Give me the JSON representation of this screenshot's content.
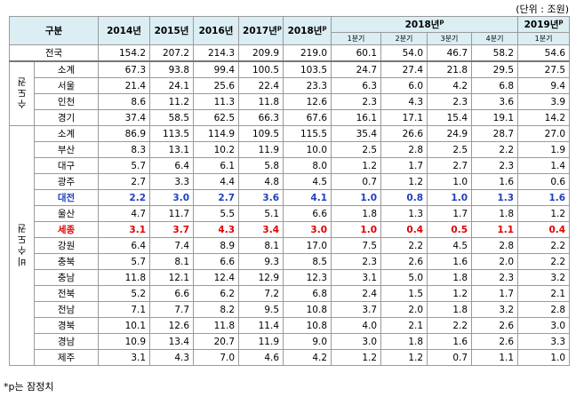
{
  "unit": "(단위 : 조원)",
  "header": {
    "label": "구분",
    "years": [
      {
        "label": "2014년"
      },
      {
        "label": "2015년"
      },
      {
        "label": "2016년"
      },
      {
        "label": "2017년",
        "sup": "p"
      },
      {
        "label": "2018년",
        "sup": "p"
      }
    ],
    "group": {
      "label": "2018년",
      "sup": "p",
      "quarters": [
        "1분기",
        "2분기",
        "3분기",
        "4분기"
      ]
    },
    "last": {
      "label": "2019년",
      "sup": "p",
      "quarter": "1분기"
    }
  },
  "total": {
    "name": "전국",
    "values": [
      "154.2",
      "207.2",
      "214.3",
      "209.9",
      "219.0",
      "60.1",
      "54.0",
      "46.7",
      "58.2",
      "54.6"
    ]
  },
  "groups": [
    {
      "label": "수도권",
      "rows": [
        {
          "name": "소계",
          "values": [
            "67.3",
            "93.8",
            "99.4",
            "100.5",
            "103.5",
            "24.7",
            "27.4",
            "21.8",
            "29.5",
            "27.5"
          ]
        },
        {
          "name": "서울",
          "values": [
            "21.4",
            "24.1",
            "25.6",
            "22.4",
            "23.3",
            "6.3",
            "6.0",
            "4.2",
            "6.8",
            "9.4"
          ]
        },
        {
          "name": "인천",
          "values": [
            "8.6",
            "11.2",
            "11.3",
            "11.8",
            "12.6",
            "2.3",
            "4.3",
            "2.3",
            "3.6",
            "3.9"
          ]
        },
        {
          "name": "경기",
          "values": [
            "37.4",
            "58.5",
            "62.5",
            "66.3",
            "67.6",
            "16.1",
            "17.1",
            "15.4",
            "19.1",
            "14.2"
          ]
        }
      ]
    },
    {
      "label": "비수도권",
      "rows": [
        {
          "name": "소계",
          "values": [
            "86.9",
            "113.5",
            "114.9",
            "109.5",
            "115.5",
            "35.4",
            "26.6",
            "24.9",
            "28.7",
            "27.0"
          ]
        },
        {
          "name": "부산",
          "values": [
            "8.3",
            "13.1",
            "10.2",
            "11.9",
            "10.0",
            "2.5",
            "2.8",
            "2.5",
            "2.2",
            "1.9"
          ]
        },
        {
          "name": "대구",
          "values": [
            "5.7",
            "6.4",
            "6.1",
            "5.8",
            "8.0",
            "1.2",
            "1.7",
            "2.7",
            "2.3",
            "1.4"
          ]
        },
        {
          "name": "광주",
          "values": [
            "2.7",
            "3.3",
            "4.4",
            "4.8",
            "4.5",
            "0.7",
            "1.2",
            "1.0",
            "1.6",
            "0.6"
          ]
        },
        {
          "name": "대전",
          "color": "#1f3fbf",
          "values": [
            "2.2",
            "3.0",
            "2.7",
            "3.6",
            "4.1",
            "1.0",
            "0.8",
            "1.0",
            "1.3",
            "1.6"
          ]
        },
        {
          "name": "울산",
          "values": [
            "4.7",
            "11.7",
            "5.5",
            "5.1",
            "6.6",
            "1.8",
            "1.3",
            "1.7",
            "1.8",
            "1.2"
          ]
        },
        {
          "name": "세종",
          "color": "#e00000",
          "values": [
            "3.1",
            "3.7",
            "4.3",
            "3.4",
            "3.0",
            "1.0",
            "0.4",
            "0.5",
            "1.1",
            "0.4"
          ]
        },
        {
          "name": "강원",
          "values": [
            "6.4",
            "7.4",
            "8.9",
            "8.1",
            "17.0",
            "7.5",
            "2.2",
            "4.5",
            "2.8",
            "2.2"
          ]
        },
        {
          "name": "충북",
          "values": [
            "5.7",
            "8.1",
            "6.6",
            "9.3",
            "8.5",
            "2.3",
            "2.6",
            "1.6",
            "2.0",
            "2.2"
          ]
        },
        {
          "name": "충남",
          "values": [
            "11.8",
            "12.1",
            "12.4",
            "12.9",
            "12.3",
            "3.1",
            "5.0",
            "1.8",
            "2.3",
            "3.2"
          ]
        },
        {
          "name": "전북",
          "values": [
            "5.2",
            "6.6",
            "6.2",
            "7.2",
            "6.8",
            "2.4",
            "1.5",
            "1.2",
            "1.7",
            "2.1"
          ]
        },
        {
          "name": "전남",
          "values": [
            "7.1",
            "7.7",
            "8.2",
            "9.5",
            "10.8",
            "3.7",
            "2.0",
            "1.8",
            "3.2",
            "2.8"
          ]
        },
        {
          "name": "경북",
          "values": [
            "10.1",
            "12.6",
            "11.8",
            "11.4",
            "10.8",
            "4.0",
            "2.1",
            "2.2",
            "2.6",
            "3.0"
          ]
        },
        {
          "name": "경남",
          "values": [
            "10.9",
            "13.4",
            "20.7",
            "11.9",
            "9.0",
            "3.0",
            "1.8",
            "1.6",
            "2.6",
            "3.3"
          ]
        },
        {
          "name": "제주",
          "values": [
            "3.1",
            "4.3",
            "7.0",
            "4.6",
            "4.2",
            "1.2",
            "1.2",
            "0.7",
            "1.1",
            "1.0"
          ]
        }
      ]
    }
  ],
  "footnote": "*p는 잠정치"
}
